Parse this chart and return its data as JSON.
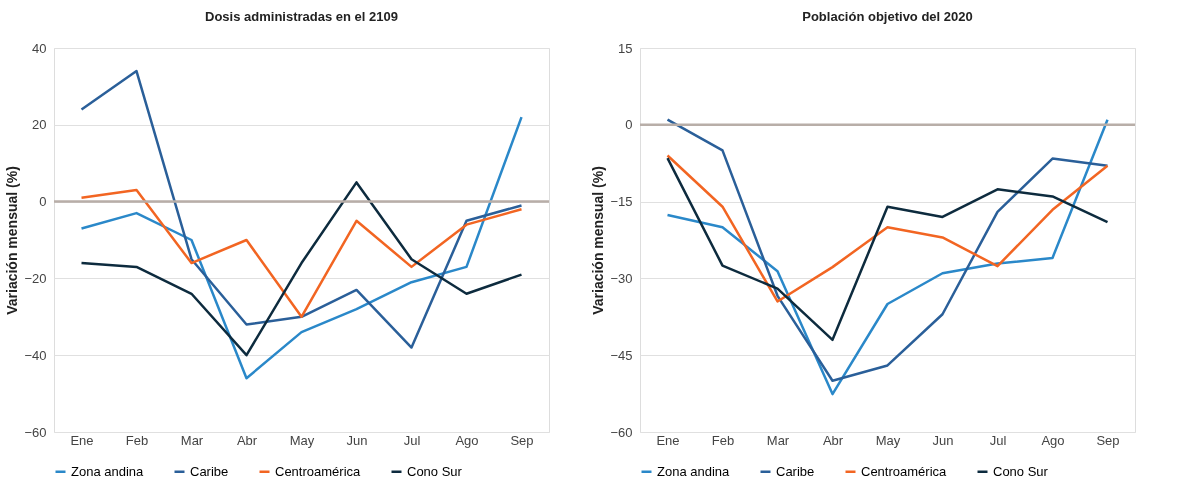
{
  "chart_data": [
    {
      "type": "line",
      "title": "Dosis administradas en el 2109",
      "ylabel": "Variación mensual (%)",
      "categories": [
        "Ene",
        "Feb",
        "Mar",
        "Abr",
        "May",
        "Jun",
        "Jul",
        "Ago",
        "Sep"
      ],
      "series": [
        {
          "name": "Zona andina",
          "color": "#2a88c9",
          "values": [
            -7,
            -3,
            -10,
            -46,
            -34,
            -28,
            -21,
            -17,
            22
          ]
        },
        {
          "name": "Caribe",
          "color": "#2a5f99",
          "values": [
            24,
            34,
            -15,
            -32,
            -30,
            -23,
            -38,
            -5,
            -1
          ]
        },
        {
          "name": "Centroamérica",
          "color": "#f26522",
          "values": [
            1,
            3,
            -16,
            -10,
            -30,
            -5,
            -17,
            -6,
            -2
          ]
        },
        {
          "name": "Cono Sur",
          "color": "#0d2b3e",
          "values": [
            -16,
            -17,
            -24,
            -40,
            -16,
            5,
            -15,
            -24,
            -19
          ]
        }
      ],
      "ylim": [
        -60,
        40
      ],
      "yticks": [
        -60,
        -40,
        -20,
        0,
        20,
        40
      ],
      "grid": "y",
      "legend": "bottom",
      "marker": "none",
      "line_style": "solid",
      "ref_lines": [
        {
          "axis": "y",
          "value": 0,
          "color": "#b8aea8"
        }
      ]
    },
    {
      "type": "line",
      "title": "Población objetivo del 2020",
      "ylabel": "Variación mensual (%)",
      "categories": [
        "Ene",
        "Feb",
        "Mar",
        "Abr",
        "May",
        "Jun",
        "Jul",
        "Ago",
        "Sep"
      ],
      "series": [
        {
          "name": "Zona andina",
          "color": "#2a88c9",
          "values": [
            -17.6,
            -20,
            -28.6,
            -52.6,
            -35,
            -29,
            -27.1,
            -26,
            1
          ]
        },
        {
          "name": "Caribe",
          "color": "#2a5f99",
          "values": [
            1,
            -5,
            -33.4,
            -50,
            -47,
            -37,
            -17,
            -6.6,
            -8
          ]
        },
        {
          "name": "Centroamérica",
          "color": "#f26522",
          "values": [
            -6,
            -16,
            -34.5,
            -27.8,
            -20,
            -22,
            -27.6,
            -16.6,
            -8
          ]
        },
        {
          "name": "Cono Sur",
          "color": "#0d2b3e",
          "values": [
            -6.5,
            -27.5,
            -32,
            -42,
            -16,
            -18,
            -12.6,
            -14,
            -19
          ]
        }
      ],
      "ylim": [
        -60,
        15
      ],
      "yticks": [
        -60,
        -45,
        -30,
        -15,
        0,
        15
      ],
      "grid": "y",
      "legend": "bottom",
      "marker": "none",
      "line_style": "solid",
      "ref_lines": [
        {
          "axis": "y",
          "value": 0,
          "color": "#b8aea8"
        }
      ]
    }
  ]
}
